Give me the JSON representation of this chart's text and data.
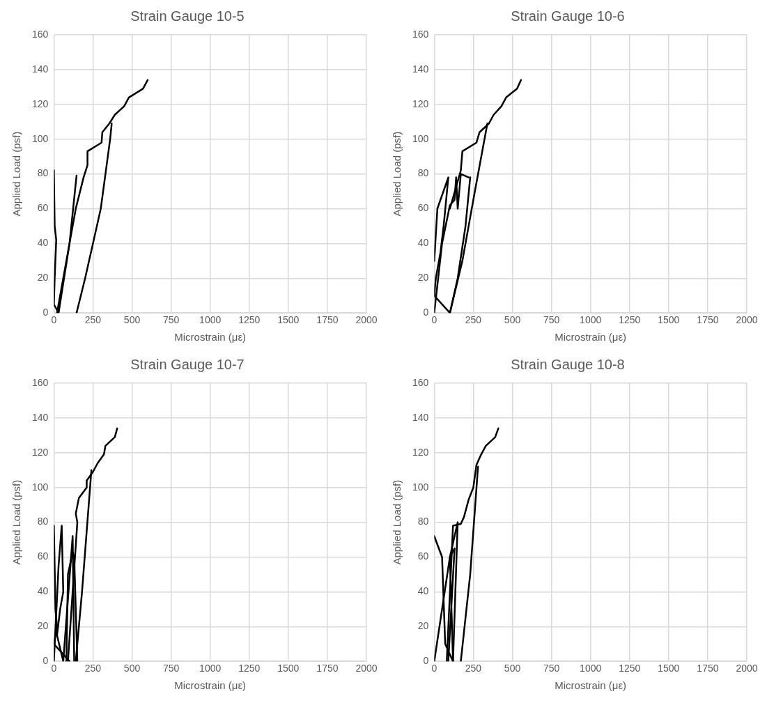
{
  "chart_data": [
    {
      "type": "line",
      "title": "Strain Gauge 10-5",
      "xlabel": "Microstrain (με)",
      "ylabel": "Applied Load (psf)",
      "xlim": [
        0,
        2000
      ],
      "xticks": [
        0,
        250,
        500,
        750,
        1000,
        1250,
        1500,
        1750,
        2000
      ],
      "ylim": [
        0,
        160
      ],
      "yticks": [
        0,
        20,
        40,
        60,
        80,
        100,
        120,
        140,
        160
      ],
      "grid": true,
      "legend": false,
      "marker": "none",
      "line_style": "solid",
      "series": [
        {
          "color": "#000000",
          "x": [
            0,
            5,
            15,
            5,
            0,
            30,
            100,
            145
          ],
          "values": [
            82,
            50,
            42,
            20,
            5,
            0,
            40,
            79
          ]
        },
        {
          "color": "#000000",
          "x": [
            20,
            60,
            100,
            140,
            190,
            215,
            215,
            305,
            310,
            355,
            390,
            450,
            480,
            570,
            600
          ],
          "values": [
            0,
            20,
            40,
            60,
            78,
            85,
            93,
            98,
            104,
            109,
            114,
            119,
            124,
            129,
            134
          ]
        },
        {
          "color": "#000000",
          "x": [
            145,
            200,
            250,
            300,
            330,
            360,
            370
          ],
          "values": [
            0,
            20,
            40,
            60,
            80,
            100,
            109
          ]
        }
      ]
    },
    {
      "type": "line",
      "title": "Strain Gauge 10-6",
      "xlabel": "Microstrain (με)",
      "ylabel": "Applied Load (psf)",
      "xlim": [
        0,
        2000
      ],
      "xticks": [
        0,
        250,
        500,
        750,
        1000,
        1250,
        1500,
        1750,
        2000
      ],
      "ylim": [
        0,
        160
      ],
      "yticks": [
        0,
        20,
        40,
        60,
        80,
        100,
        120,
        140,
        160
      ],
      "grid": true,
      "legend": false,
      "marker": "none",
      "line_style": "solid",
      "series": [
        {
          "color": "#000000",
          "x": [
            0,
            20,
            90,
            60,
            40,
            10,
            0,
            100,
            150,
            200,
            230
          ],
          "values": [
            30,
            60,
            78,
            50,
            35,
            20,
            10,
            0,
            20,
            50,
            78
          ]
        },
        {
          "color": "#000000",
          "x": [
            0,
            50,
            100,
            130,
            140,
            150,
            170,
            220
          ],
          "values": [
            0,
            40,
            62,
            65,
            78,
            60,
            80,
            78
          ]
        },
        {
          "color": "#000000",
          "x": [
            100,
            170,
            180,
            270,
            290,
            350,
            380,
            430,
            460,
            530,
            555
          ],
          "values": [
            60,
            82,
            93,
            98,
            104,
            109,
            114,
            119,
            124,
            129,
            134
          ]
        },
        {
          "color": "#000000",
          "x": [
            100,
            180,
            260,
            340
          ],
          "values": [
            0,
            30,
            70,
            109
          ]
        }
      ]
    },
    {
      "type": "line",
      "title": "Strain Gauge 10-7",
      "xlabel": "Microstrain (με)",
      "ylabel": "Applied Load (psf)",
      "xlim": [
        0,
        2000
      ],
      "xticks": [
        0,
        250,
        500,
        750,
        1000,
        1250,
        1500,
        1750,
        2000
      ],
      "ylim": [
        0,
        160
      ],
      "yticks": [
        0,
        20,
        40,
        60,
        80,
        100,
        120,
        140,
        160
      ],
      "grid": true,
      "legend": false,
      "marker": "none",
      "line_style": "solid",
      "series": [
        {
          "color": "#000000",
          "x": [
            0,
            10,
            20,
            0,
            100
          ],
          "values": [
            78,
            30,
            20,
            10,
            0
          ]
        },
        {
          "color": "#000000",
          "x": [
            0,
            30,
            50,
            60,
            40,
            20,
            60,
            120,
            130
          ],
          "values": [
            0,
            55,
            78,
            40,
            30,
            15,
            0,
            72,
            0
          ]
        },
        {
          "color": "#000000",
          "x": [
            90,
            150,
            140,
            160,
            210,
            210,
            250,
            280,
            320,
            330,
            390,
            405
          ],
          "values": [
            0,
            80,
            85,
            94,
            100,
            104,
            109,
            114,
            119,
            124,
            129,
            134
          ]
        },
        {
          "color": "#000000",
          "x": [
            140,
            180,
            240
          ],
          "values": [
            0,
            40,
            110
          ]
        },
        {
          "color": "#000000",
          "x": [
            80,
            90,
            120,
            130,
            150
          ],
          "values": [
            0,
            50,
            63,
            60,
            0
          ]
        }
      ]
    },
    {
      "type": "line",
      "title": "Strain Gauge 10-8",
      "xlabel": "Microstrain (με)",
      "ylabel": "Applied Load (psf)",
      "xlim": [
        0,
        2000
      ],
      "xticks": [
        0,
        250,
        500,
        750,
        1000,
        1250,
        1500,
        1750,
        2000
      ],
      "ylim": [
        0,
        160
      ],
      "yticks": [
        0,
        20,
        40,
        60,
        80,
        100,
        120,
        140,
        160
      ],
      "grid": true,
      "legend": false,
      "marker": "none",
      "line_style": "solid",
      "series": [
        {
          "color": "#000000",
          "x": [
            0,
            50,
            70,
            120,
            100,
            130,
            90
          ],
          "values": [
            72,
            60,
            10,
            0,
            60,
            65,
            0
          ]
        },
        {
          "color": "#000000",
          "x": [
            0,
            50,
            100,
            150,
            120
          ],
          "values": [
            0,
            30,
            60,
            80,
            0
          ]
        },
        {
          "color": "#000000",
          "x": [
            80,
            120,
            170,
            190,
            220,
            250,
            270,
            300,
            330,
            390,
            410
          ],
          "values": [
            0,
            78,
            79,
            83,
            93,
            100,
            113,
            119,
            124,
            129,
            134
          ]
        },
        {
          "color": "#000000",
          "x": [
            170,
            230,
            280
          ],
          "values": [
            0,
            50,
            112
          ]
        }
      ]
    }
  ]
}
